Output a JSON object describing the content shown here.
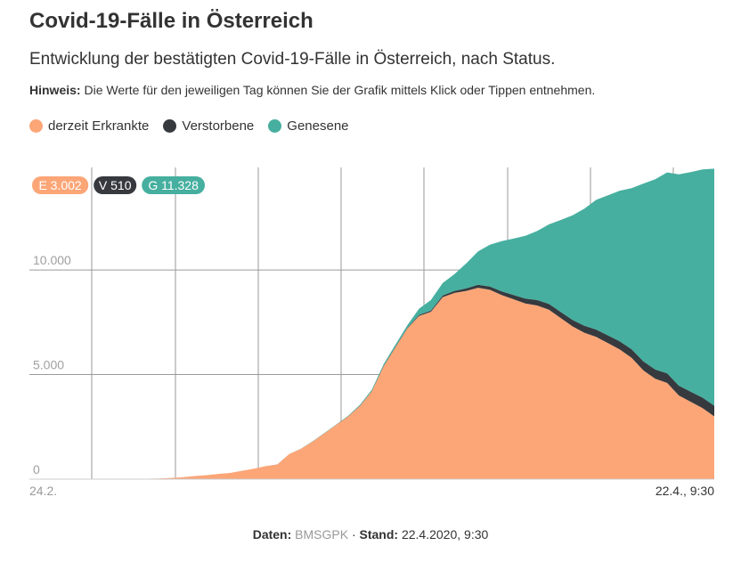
{
  "header": {
    "title": "Covid-19-Fälle in Österreich",
    "subtitle": "Entwicklung der bestätigten Covid-19-Fälle in Österreich, nach Status.",
    "note_label": "Hinweis:",
    "note_text": "Die Werte für den jeweiligen Tag können Sie der Grafik mittels Klick oder Tippen entnehmen."
  },
  "footer": {
    "data_label": "Daten:",
    "data_source": "BMSGPK",
    "separator": "·",
    "stand_label": "Stand:",
    "stand_value": "22.4.2020, 9:30"
  },
  "chart_data": {
    "type": "area",
    "stacked": true,
    "x_first_label": "24.2.",
    "x_last_label": "22.4., 9:30",
    "y_ticks": [
      {
        "value": 0,
        "label": "0"
      },
      {
        "value": 5000,
        "label": "5.000"
      },
      {
        "value": 10000,
        "label": "10.000"
      }
    ],
    "ylim": [
      0,
      14900
    ],
    "grid": true,
    "legend_position": "top-left",
    "series": [
      {
        "name": "derzeit Erkrankte",
        "key": "E",
        "color": "#fca678",
        "values": [
          0,
          2,
          4,
          5,
          5,
          8,
          10,
          12,
          14,
          16,
          20,
          30,
          60,
          100,
          150,
          190,
          250,
          300,
          400,
          500,
          620,
          700,
          1200,
          1450,
          1800,
          2200,
          2600,
          3000,
          3500,
          4200,
          5400,
          6300,
          7200,
          7800,
          8000,
          8700,
          8900,
          9000,
          9150,
          9050,
          8800,
          8600,
          8400,
          8300,
          8100,
          7700,
          7300,
          7000,
          6800,
          6500,
          6200,
          5800,
          5200,
          4800,
          4600,
          4000,
          3700,
          3400,
          3002
        ]
      },
      {
        "name": "Verstorbene",
        "key": "V",
        "color": "#363a3f",
        "values": [
          0,
          0,
          0,
          0,
          0,
          0,
          0,
          0,
          0,
          0,
          0,
          0,
          0,
          0,
          0,
          0,
          0,
          0,
          0,
          0,
          1,
          1,
          2,
          3,
          4,
          6,
          8,
          10,
          15,
          20,
          25,
          28,
          30,
          50,
          60,
          80,
          100,
          120,
          140,
          160,
          180,
          200,
          230,
          260,
          280,
          290,
          310,
          330,
          350,
          370,
          390,
          410,
          430,
          440,
          460,
          470,
          480,
          500,
          510
        ]
      },
      {
        "name": "Genesene",
        "key": "G",
        "color": "#46af9f",
        "values": [
          0,
          0,
          0,
          0,
          0,
          0,
          0,
          0,
          0,
          0,
          0,
          0,
          0,
          0,
          0,
          0,
          0,
          0,
          0,
          0,
          0,
          2,
          4,
          6,
          8,
          10,
          12,
          20,
          40,
          60,
          80,
          100,
          120,
          300,
          500,
          600,
          800,
          1200,
          1600,
          2000,
          2400,
          2700,
          3000,
          3300,
          3800,
          4400,
          5000,
          5600,
          6200,
          6700,
          7200,
          7700,
          8500,
          9100,
          9600,
          10100,
          10500,
          10900,
          11328
        ]
      }
    ],
    "badges": [
      {
        "text": "E 3.002",
        "color": "#fca678"
      },
      {
        "text": "V 510",
        "color": "#363a3f"
      },
      {
        "text": "G 11.328",
        "color": "#46af9f"
      }
    ]
  }
}
